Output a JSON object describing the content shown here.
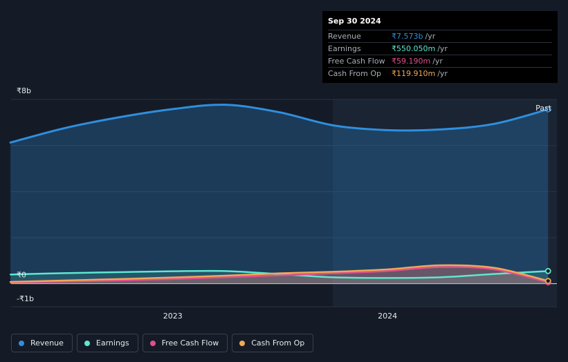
{
  "tooltip": {
    "date": "Sep 30 2024",
    "rows": [
      {
        "name": "Revenue",
        "value": "₹7.573b",
        "unit": "/yr",
        "color": "#2f8fdf"
      },
      {
        "name": "Earnings",
        "value": "₹550.050m",
        "unit": "/yr",
        "color": "#5ee8d0"
      },
      {
        "name": "Free Cash Flow",
        "value": "₹59.190m",
        "unit": "/yr",
        "color": "#e0508c"
      },
      {
        "name": "Cash From Op",
        "value": "₹119.910m",
        "unit": "/yr",
        "color": "#f0a858"
      }
    ]
  },
  "past_label": "Past",
  "legend": [
    {
      "name": "Revenue",
      "color": "#2f8fdf"
    },
    {
      "name": "Earnings",
      "color": "#5ee8d0"
    },
    {
      "name": "Free Cash Flow",
      "color": "#e0508c"
    },
    {
      "name": "Cash From Op",
      "color": "#f0a858"
    }
  ],
  "chart_data": {
    "type": "area",
    "currency": "₹",
    "y_unit": "b",
    "ylim": [
      -1,
      8
    ],
    "y_ticks": [
      {
        "value": 8,
        "label": "₹8b"
      },
      {
        "value": 0,
        "label": "₹0"
      },
      {
        "value": -1,
        "label": "-₹1b"
      }
    ],
    "x_ticks": [
      {
        "value": "2023-01-01",
        "label": "2023"
      },
      {
        "value": "2024-01-01",
        "label": "2024"
      }
    ],
    "x_range": [
      "2022-04-01",
      "2024-10-15"
    ],
    "highlight_start": "2023-09-30",
    "grid": true,
    "series": [
      {
        "name": "Revenue",
        "color": "#2f8fdf",
        "x": [
          "2022-03-31",
          "2022-06-30",
          "2022-09-30",
          "2022-12-31",
          "2023-03-31",
          "2023-06-30",
          "2023-09-30",
          "2023-12-31",
          "2024-03-31",
          "2024-06-30",
          "2024-09-30"
        ],
        "y": [
          6.13,
          6.75,
          7.22,
          7.58,
          7.77,
          7.45,
          6.88,
          6.67,
          6.7,
          6.94,
          7.573
        ]
      },
      {
        "name": "Earnings",
        "color": "#5ee8d0",
        "x": [
          "2022-03-31",
          "2022-06-30",
          "2022-09-30",
          "2022-12-31",
          "2023-03-31",
          "2023-06-30",
          "2023-09-30",
          "2023-12-31",
          "2024-03-31",
          "2024-06-30",
          "2024-09-30"
        ],
        "y": [
          0.4,
          0.46,
          0.5,
          0.54,
          0.55,
          0.42,
          0.28,
          0.25,
          0.28,
          0.42,
          0.55005
        ]
      },
      {
        "name": "Free Cash Flow",
        "color": "#e0508c",
        "x": [
          "2022-03-31",
          "2022-06-30",
          "2022-09-30",
          "2022-12-31",
          "2023-03-31",
          "2023-06-30",
          "2023-09-30",
          "2023-12-31",
          "2024-03-31",
          "2024-06-30",
          "2024-09-30"
        ],
        "y": [
          0.05,
          0.09,
          0.14,
          0.2,
          0.28,
          0.36,
          0.45,
          0.55,
          0.72,
          0.62,
          0.05919
        ]
      },
      {
        "name": "Cash From Op",
        "color": "#f0a858",
        "x": [
          "2022-03-31",
          "2022-06-30",
          "2022-09-30",
          "2022-12-31",
          "2023-03-31",
          "2023-06-30",
          "2023-09-30",
          "2023-12-31",
          "2024-03-31",
          "2024-06-30",
          "2024-09-30"
        ],
        "y": [
          0.08,
          0.14,
          0.2,
          0.27,
          0.35,
          0.45,
          0.52,
          0.62,
          0.8,
          0.69,
          0.11991
        ]
      }
    ]
  }
}
